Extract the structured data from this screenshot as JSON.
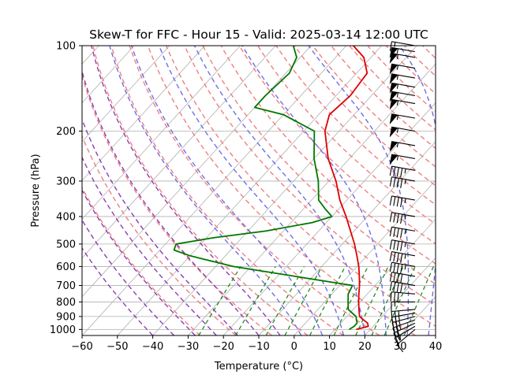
{
  "chart_data": {
    "type": "line",
    "title": "Skew-T for FFC - Hour 15 - Valid: 2025-03-14 12:00 UTC",
    "xlabel": "Temperature (°C)",
    "ylabel": "Pressure (hPa)",
    "xlim": [
      -60,
      40
    ],
    "ylim": [
      1050,
      100
    ],
    "y_scale": "log",
    "grid": true,
    "x_ticks": [
      -60,
      -50,
      -40,
      -30,
      -20,
      -10,
      0,
      10,
      20,
      30,
      40
    ],
    "x_tick_labels": [
      "−60",
      "−50",
      "−40",
      "−30",
      "−20",
      "−10",
      "0",
      "10",
      "20",
      "30",
      "40"
    ],
    "y_ticks": [
      100,
      200,
      300,
      400,
      500,
      600,
      700,
      800,
      900,
      1000
    ],
    "y_tick_labels": [
      "100",
      "200",
      "300",
      "400",
      "500",
      "600",
      "700",
      "800",
      "900",
      "1000"
    ],
    "series": [
      {
        "color": "#dd0000",
        "points": [
          [
            1000,
            16
          ],
          [
            975,
            18.6
          ],
          [
            950,
            17.6
          ],
          [
            925,
            15.6
          ],
          [
            900,
            13.6
          ],
          [
            850,
            11.6
          ],
          [
            800,
            9.6
          ],
          [
            750,
            7.6
          ],
          [
            700,
            5.6
          ],
          [
            650,
            3.2
          ],
          [
            600,
            0.5
          ],
          [
            550,
            -2.8
          ],
          [
            500,
            -6.5
          ],
          [
            450,
            -11
          ],
          [
            400,
            -16
          ],
          [
            350,
            -22
          ],
          [
            300,
            -28
          ],
          [
            250,
            -36
          ],
          [
            200,
            -44
          ],
          [
            175,
            -47
          ],
          [
            150,
            -46
          ],
          [
            125,
            -47
          ],
          [
            110,
            -52
          ],
          [
            100,
            -58
          ]
        ]
      },
      {
        "color": "#007700",
        "points": [
          [
            1000,
            14
          ],
          [
            975,
            14.6
          ],
          [
            950,
            14.6
          ],
          [
            925,
            13.6
          ],
          [
            900,
            12.6
          ],
          [
            850,
            8.6
          ],
          [
            800,
            6.6
          ],
          [
            750,
            4.6
          ],
          [
            700,
            3.6
          ],
          [
            650,
            -15
          ],
          [
            600,
            -35
          ],
          [
            550,
            -50
          ],
          [
            525,
            -56
          ],
          [
            500,
            -57
          ],
          [
            475,
            -48
          ],
          [
            450,
            -35
          ],
          [
            420,
            -24
          ],
          [
            400,
            -20
          ],
          [
            375,
            -24
          ],
          [
            350,
            -28
          ],
          [
            300,
            -33
          ],
          [
            250,
            -40
          ],
          [
            200,
            -47
          ],
          [
            175,
            -60
          ],
          [
            165,
            -70
          ],
          [
            150,
            -70
          ],
          [
            125,
            -69
          ],
          [
            110,
            -71
          ],
          [
            100,
            -75
          ]
        ]
      }
    ],
    "wind_barbs": [
      {
        "p": 1000,
        "speed": 10,
        "dir": 230
      },
      {
        "p": 975,
        "speed": 15,
        "dir": 240
      },
      {
        "p": 950,
        "speed": 20,
        "dir": 245
      },
      {
        "p": 925,
        "speed": 25,
        "dir": 250
      },
      {
        "p": 900,
        "speed": 25,
        "dir": 255
      },
      {
        "p": 875,
        "speed": 25,
        "dir": 260
      },
      {
        "p": 850,
        "speed": 25,
        "dir": 265
      },
      {
        "p": 800,
        "speed": 15,
        "dir": 270
      },
      {
        "p": 750,
        "speed": 30,
        "dir": 275
      },
      {
        "p": 700,
        "speed": 40,
        "dir": 280
      },
      {
        "p": 650,
        "speed": 40,
        "dir": 280
      },
      {
        "p": 600,
        "speed": 45,
        "dir": 280
      },
      {
        "p": 550,
        "speed": 45,
        "dir": 280
      },
      {
        "p": 500,
        "speed": 45,
        "dir": 280
      },
      {
        "p": 450,
        "speed": 45,
        "dir": 280
      },
      {
        "p": 400,
        "speed": 45,
        "dir": 280
      },
      {
        "p": 350,
        "speed": 45,
        "dir": 280
      },
      {
        "p": 300,
        "speed": 45,
        "dir": 280
      },
      {
        "p": 275,
        "speed": 45,
        "dir": 280
      },
      {
        "p": 250,
        "speed": 55,
        "dir": 280
      },
      {
        "p": 225,
        "speed": 55,
        "dir": 280
      },
      {
        "p": 200,
        "speed": 55,
        "dir": 280
      },
      {
        "p": 180,
        "speed": 55,
        "dir": 280
      },
      {
        "p": 160,
        "speed": 55,
        "dir": 280
      },
      {
        "p": 150,
        "speed": 55,
        "dir": 280
      },
      {
        "p": 140,
        "speed": 55,
        "dir": 280
      },
      {
        "p": 130,
        "speed": 55,
        "dir": 280
      },
      {
        "p": 120,
        "speed": 55,
        "dir": 280
      },
      {
        "p": 110,
        "speed": 55,
        "dir": 280
      },
      {
        "p": 105,
        "speed": 55,
        "dir": 280
      },
      {
        "p": 100,
        "speed": 15,
        "dir": 280
      }
    ]
  }
}
